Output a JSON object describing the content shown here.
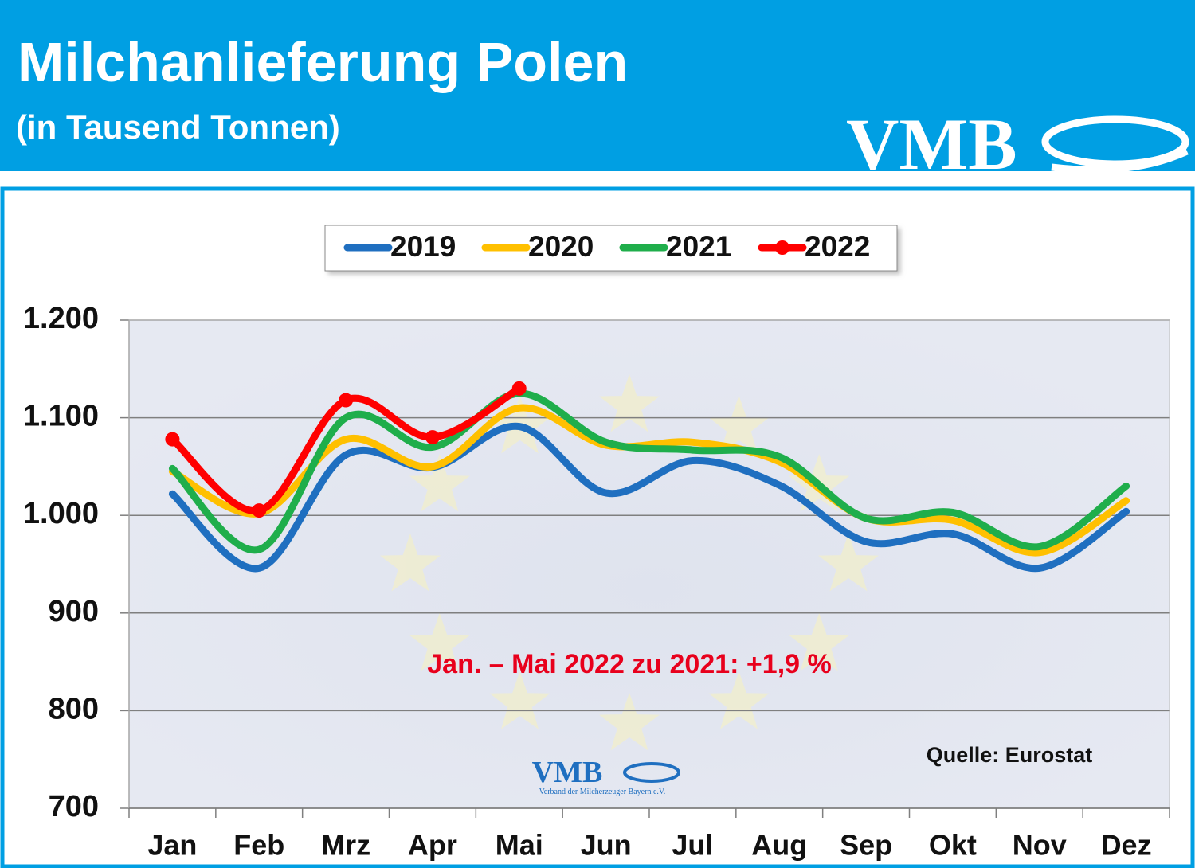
{
  "chart_data": {
    "type": "line",
    "title": "Milchanlieferung Polen",
    "subtitle": "(in Tausend Tonnen)",
    "logo": "VMB",
    "watermark": "VMB",
    "watermark_caption": "Verband der Milcherzeuger Bayern e.V.",
    "annotation": "Jan. – Mai 2022 zu 2021: +1,9 %",
    "source": "Quelle: Eurostat",
    "categories": [
      "Jan",
      "Feb",
      "Mrz",
      "Apr",
      "Mai",
      "Jun",
      "Jul",
      "Aug",
      "Sep",
      "Okt",
      "Nov",
      "Dez"
    ],
    "series": [
      {
        "name": "2019",
        "color": "#1f6fc0",
        "values": [
          1022,
          946,
          1062,
          1049,
          1091,
          1023,
          1056,
          1031,
          973,
          981,
          946,
          1004
        ]
      },
      {
        "name": "2020",
        "color": "#ffc000",
        "values": [
          1045,
          1002,
          1078,
          1050,
          1110,
          1072,
          1075,
          1055,
          997,
          995,
          962,
          1015
        ]
      },
      {
        "name": "2021",
        "color": "#1fae4b",
        "values": [
          1048,
          965,
          1100,
          1070,
          1125,
          1075,
          1067,
          1060,
          997,
          1003,
          968,
          1030
        ]
      },
      {
        "name": "2022",
        "color": "#ff0000",
        "values": [
          1078,
          1005,
          1118,
          1080,
          1130,
          null,
          null,
          null,
          null,
          null,
          null,
          null
        ],
        "markers": true
      }
    ],
    "ylim": [
      700,
      1200
    ],
    "yticks": [
      700,
      800,
      900,
      {
        "value": 1000,
        "label": "1.000"
      },
      {
        "value": 1100,
        "label": "1.100"
      },
      {
        "value": 1200,
        "label": "1.200"
      }
    ],
    "grid": true,
    "legend": "top"
  }
}
